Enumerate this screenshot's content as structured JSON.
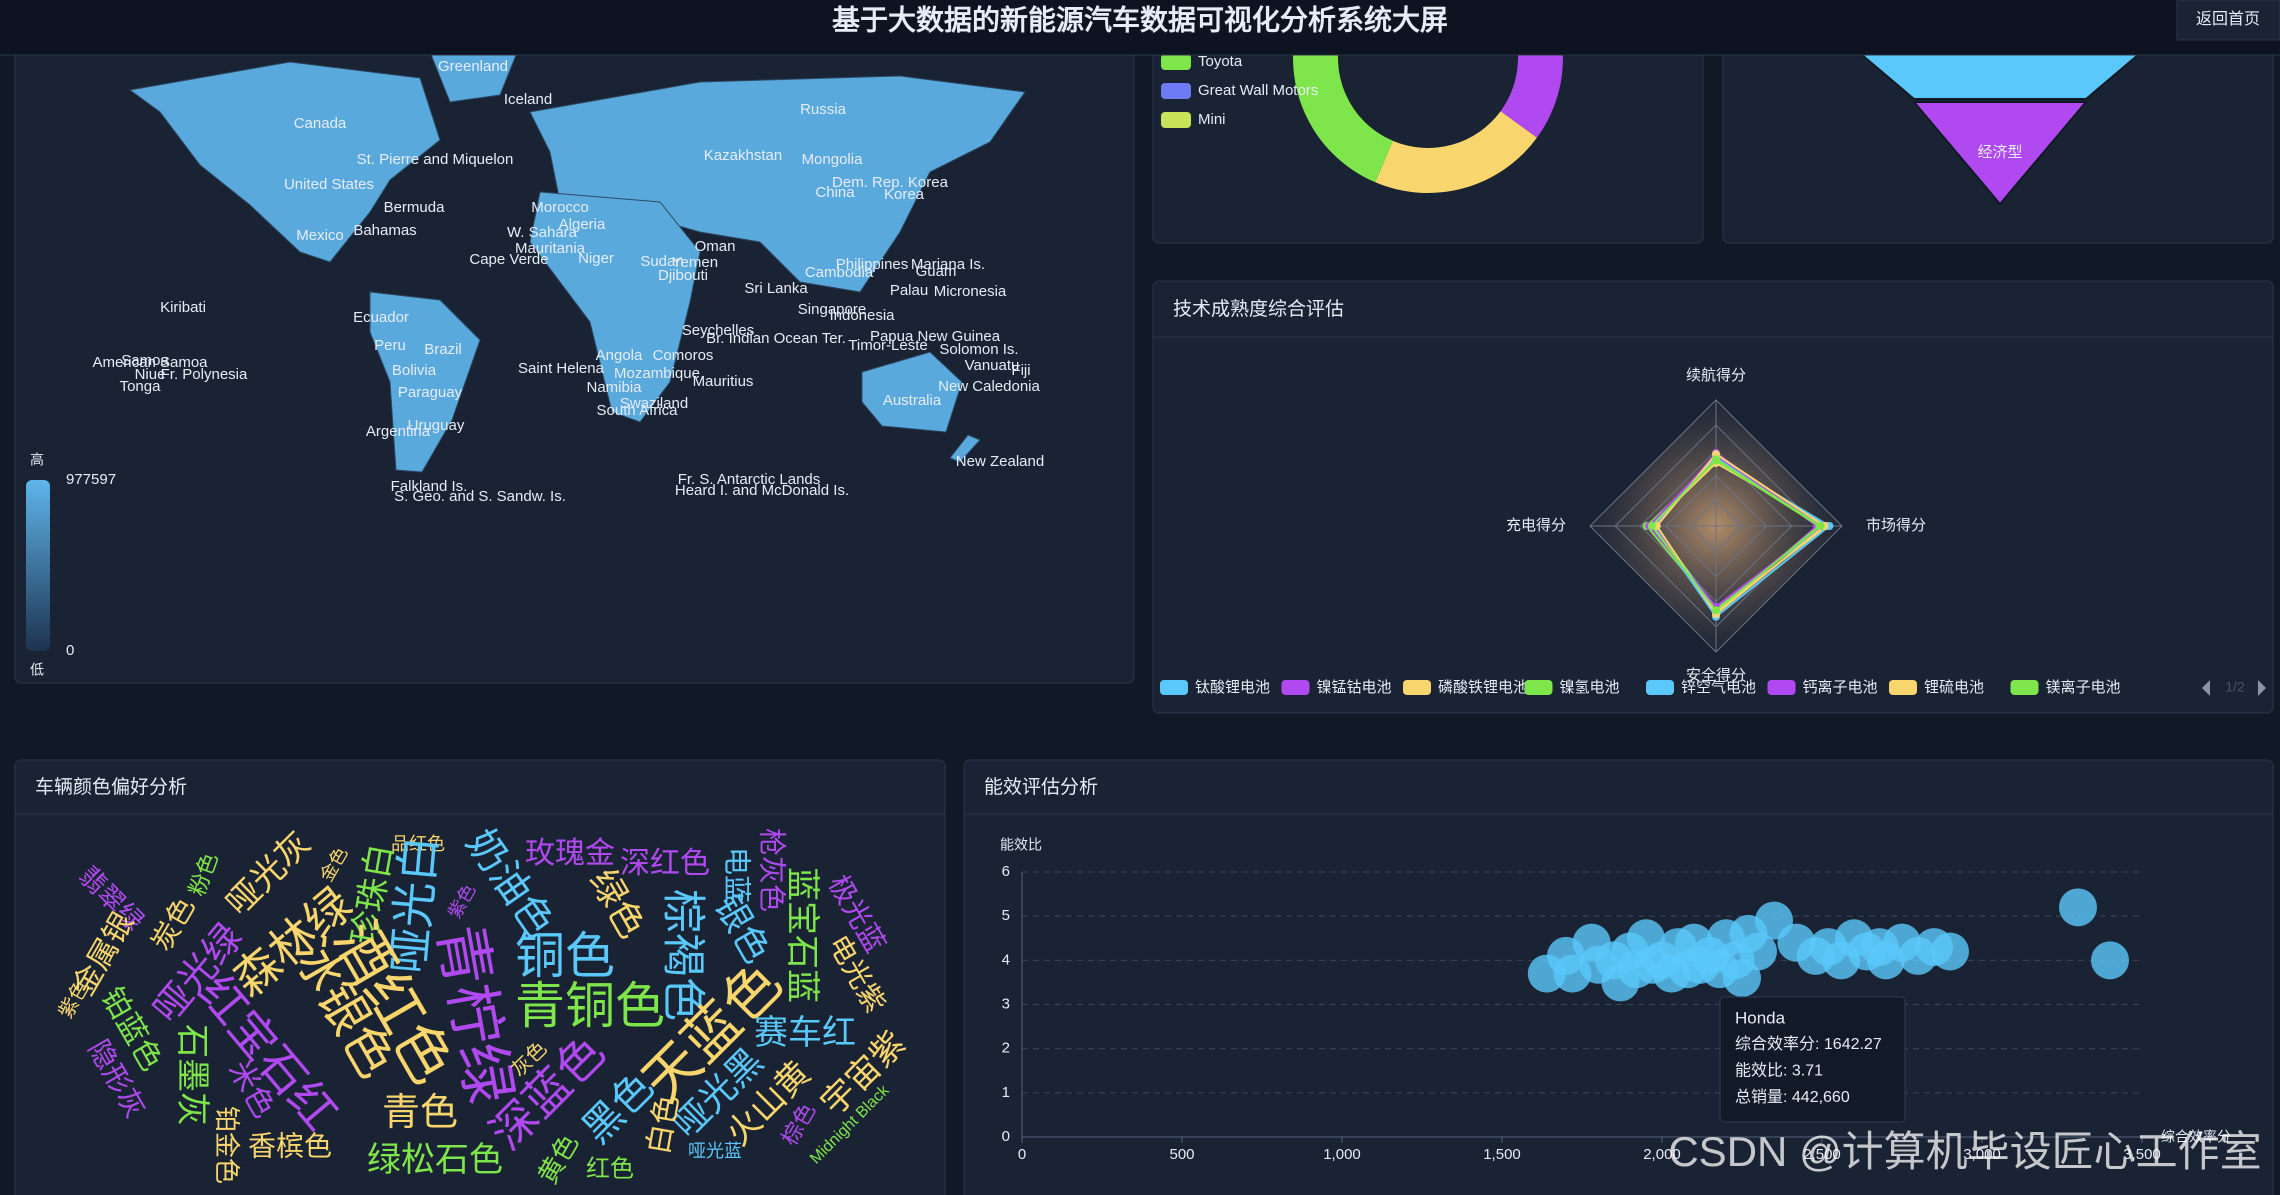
{
  "header": {
    "title": "基于大数据的新能源汽车数据可视化分析系统大屏",
    "back_button": "返回首页"
  },
  "watermark": "CSDN @计算机毕设匠心工作室",
  "chart_data": [
    {
      "type": "map",
      "color": "#5aa9dc",
      "country_labels": [
        "Greenland",
        "Canada",
        "Iceland",
        "Russia",
        "United States",
        "St. Pierre and Miquelon",
        "Kazakhstan",
        "Mongolia",
        "China",
        "Dem. Rep. Korea",
        "Korea",
        "Bermuda",
        "Morocco",
        "Algeria",
        "Mexico",
        "Bahamas",
        "W. Sahara",
        "Mauritania",
        "Oman",
        "Niger",
        "Sudan",
        "Yemen",
        "Philippines",
        "Mariana Is.",
        "Guam",
        "Cambodia",
        "Djibouti",
        "Cape Verde",
        "Kiribati",
        "Sri Lanka",
        "Palau",
        "Micronesia",
        "Ecuador",
        "Singapore",
        "Indonesia",
        "Seychelles",
        "Br. Indian Ocean Ter.",
        "Papua New Guinea",
        "Solomon Is.",
        "Timor-Leste",
        "Peru",
        "Brazil",
        "Vanuatu",
        "Fiji",
        "Samoa",
        "American Samoa",
        "Niue",
        "Fr. Polynesia",
        "Tonga",
        "Bolivia",
        "Saint Helena",
        "Angola",
        "Comoros",
        "Mozambique",
        "Mauritius",
        "Namibia",
        "New Caledonia",
        "Swaziland",
        "Paraguay",
        "Australia",
        "South Africa",
        "Uruguay",
        "Argentina",
        "New Zealand",
        "Falkland Is.",
        "S. Geo. and S. Sandw. Is.",
        "Fr. S. Antarctic Lands",
        "Heard I. and McDonald Is."
      ],
      "visual_map": {
        "min": 0,
        "max": 977597,
        "high_text": "高",
        "low_text": "低"
      }
    },
    {
      "type": "pie",
      "categories": [
        null,
        null,
        "Toyota",
        "Great Wall Motors",
        "Mini"
      ],
      "values": [
        19,
        16,
        18,
        12,
        10
      ],
      "colors": [
        "#b04af0",
        "#f8d66d",
        "#7ee54a",
        "#6d7cf5",
        "#c8e35a"
      ]
    },
    {
      "type": "funnel",
      "categories": [
        null,
        "经济型"
      ],
      "values": [
        48,
        20
      ],
      "colors": [
        "#5ac8fa",
        "#b04af0"
      ]
    },
    {
      "type": "radar",
      "title": "技术成熟度综合评估",
      "indicators": [
        {
          "name": "续航得分",
          "max": 100
        },
        {
          "name": "市场得分",
          "max": 100
        },
        {
          "name": "安全得分",
          "max": 100
        },
        {
          "name": "充电得分",
          "max": 100
        }
      ],
      "series": [
        {
          "name": "钛酸锂电池",
          "color": "#5ac8fa",
          "values": [
            55,
            85,
            65,
            50
          ]
        },
        {
          "name": "镍锰钴电池",
          "color": "#b04af0",
          "values": [
            58,
            80,
            70,
            48
          ]
        },
        {
          "name": "磷酸铁锂电池",
          "color": "#f8d66d",
          "values": [
            50,
            88,
            68,
            52
          ]
        },
        {
          "name": "镍氢电池",
          "color": "#7ee54a",
          "values": [
            52,
            82,
            66,
            55
          ]
        },
        {
          "name": "锌空气电池",
          "color": "#5ac8fa",
          "values": [
            54,
            90,
            72,
            50
          ]
        },
        {
          "name": "钙离子电池",
          "color": "#b04af0",
          "values": [
            56,
            84,
            64,
            53
          ]
        },
        {
          "name": "锂硫电池",
          "color": "#f8d66d",
          "values": [
            57,
            86,
            70,
            47
          ]
        },
        {
          "name": "镁离子电池",
          "color": "#7ee54a",
          "values": [
            53,
            83,
            67,
            51
          ]
        }
      ],
      "legend_page": "1/2"
    },
    {
      "type": "wordcloud",
      "title": "车辆颜色偏好分析",
      "words": [
        "翡翠绿",
        "金属银",
        "粉色",
        "炭色",
        "哑光灰",
        "哑光绿",
        "森林绿",
        "金色",
        "珍珠白",
        "品红色",
        "哑光白",
        "紫色",
        "奶油色",
        "玫瑰金",
        "深红色",
        "电蓝",
        "枪灰色",
        "蓝宝石蓝",
        "极光蓝",
        "电光紫",
        "紫色",
        "铂蓝色",
        "隐形灰",
        "石墨灰",
        "米色",
        "铂金色",
        "红宝石红",
        "冰银色",
        "酒红色",
        "青柠绿",
        "铜色",
        "青铜色",
        "绿色",
        "棕褐色",
        "银色",
        "天蓝色",
        "赛车红",
        "哑光黑",
        "火山黄",
        "宇宙紫",
        "深蓝色",
        "黑色",
        "白色",
        "灰色",
        "青色",
        "香槟色",
        "绿松石色",
        "黄色",
        "红色",
        "哑光蓝",
        "棕色",
        "Midnight Black"
      ]
    },
    {
      "type": "scatter",
      "title": "能效评估分析",
      "x_label": "综合效率分",
      "y_label": "能效比",
      "color": "#5ac8fa",
      "grid": true,
      "x": [
        1640,
        1700,
        1720,
        1780,
        1800,
        1850,
        1870,
        1900,
        1920,
        1950,
        1970,
        2000,
        2030,
        2050,
        2080,
        2100,
        2120,
        2150,
        2180,
        2200,
        2230,
        2250,
        2270,
        2300,
        2350,
        2420,
        2480,
        2520,
        2560,
        2600,
        2640,
        2680,
        2700,
        2750,
        2800,
        2850,
        2900,
        3300,
        3400
      ],
      "values": [
        3.7,
        4.1,
        3.7,
        4.4,
        3.9,
        4.0,
        3.5,
        4.2,
        3.8,
        4.5,
        3.9,
        4.0,
        3.7,
        4.3,
        3.8,
        4.4,
        3.9,
        4.1,
        3.8,
        4.5,
        4.0,
        3.6,
        4.6,
        4.2,
        4.9,
        4.4,
        4.1,
        4.3,
        4.0,
        4.5,
        4.2,
        4.3,
        4.0,
        4.4,
        4.1,
        4.3,
        4.2,
        5.2,
        4.0
      ],
      "xlim": [
        0,
        3500
      ],
      "ylim": [
        0,
        6
      ],
      "xticks": [
        0,
        500,
        {
          "value": 1000,
          "label": "1,000"
        },
        {
          "value": 1500,
          "label": "1,500"
        },
        {
          "value": 2000,
          "label": "2,000"
        },
        {
          "value": 2500,
          "label": "2,500"
        },
        {
          "value": 3000,
          "label": "3,000"
        },
        {
          "value": 3500,
          "label": "3,500"
        }
      ],
      "yticks": [
        0,
        1,
        2,
        3,
        4,
        5,
        6
      ],
      "tooltip": {
        "title": "Honda",
        "lines": [
          "综合效率分: 1642.27",
          "能效比: 3.71",
          "总销量: 442,660"
        ]
      }
    }
  ]
}
